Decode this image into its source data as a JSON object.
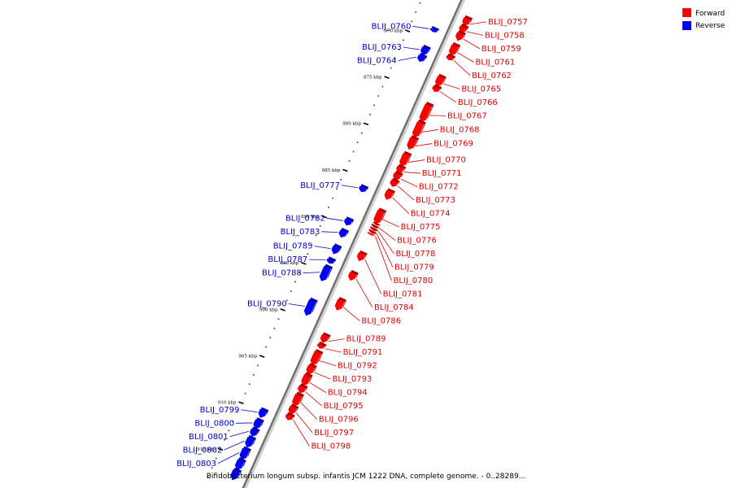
{
  "caption": "Bifidobacterium longum subsp. infantis JCM 1222 DNA, complete genome. - 0..28289...",
  "legend": [
    {
      "label": "Forward",
      "color": "#ff0000"
    },
    {
      "label": "Reverse",
      "color": "#0000ff"
    }
  ],
  "axis": {
    "unit": "kbp",
    "start_kbp": 865,
    "end_kbp": 918,
    "tick_labels": [
      "870 kbp",
      "875 kbp",
      "880 kbp",
      "885 kbp",
      "890 kbp",
      "895 kbp",
      "900 kbp",
      "905 kbp",
      "910 kbp",
      "915 kbp"
    ]
  },
  "forward_genes": [
    {
      "name": "BLIJ_0757",
      "start": 866.5,
      "end": 867.3
    },
    {
      "name": "BLIJ_0758",
      "start": 867.4,
      "end": 868.0
    },
    {
      "name": "BLIJ_0759",
      "start": 868.1,
      "end": 868.9
    },
    {
      "name": "BLIJ_0761",
      "start": 869.4,
      "end": 870.5
    },
    {
      "name": "BLIJ_0762",
      "start": 870.6,
      "end": 871.0
    },
    {
      "name": "BLIJ_0765",
      "start": 872.8,
      "end": 873.8
    },
    {
      "name": "BLIJ_0766",
      "start": 873.9,
      "end": 874.4
    },
    {
      "name": "BLIJ_0767",
      "start": 875.8,
      "end": 877.6
    },
    {
      "name": "BLIJ_0768",
      "start": 877.7,
      "end": 879.3
    },
    {
      "name": "BLIJ_0769",
      "start": 879.4,
      "end": 880.6
    },
    {
      "name": "BLIJ_0770",
      "start": 881.1,
      "end": 882.4
    },
    {
      "name": "BLIJ_0771",
      "start": 882.5,
      "end": 883.1
    },
    {
      "name": "BLIJ_0772",
      "start": 883.2,
      "end": 883.9
    },
    {
      "name": "BLIJ_0773",
      "start": 884.0,
      "end": 884.6
    },
    {
      "name": "BLIJ_0774",
      "start": 885.1,
      "end": 886.0
    },
    {
      "name": "BLIJ_0775",
      "start": 887.2,
      "end": 888.6
    },
    {
      "name": "BLIJ_0776",
      "start": 888.7,
      "end": 888.9
    },
    {
      "name": "BLIJ_0778",
      "start": 889.0,
      "end": 889.2
    },
    {
      "name": "BLIJ_0779",
      "start": 889.3,
      "end": 889.5
    },
    {
      "name": "BLIJ_0780",
      "start": 889.6,
      "end": 889.8
    },
    {
      "name": "BLIJ_0781",
      "start": 891.8,
      "end": 892.6
    },
    {
      "name": "BLIJ_0784",
      "start": 893.9,
      "end": 894.7
    },
    {
      "name": "BLIJ_0786",
      "start": 896.8,
      "end": 897.9
    },
    {
      "name": "BLIJ_0789",
      "start": 900.6,
      "end": 901.4
    },
    {
      "name": "BLIJ_0791",
      "start": 901.6,
      "end": 902.0
    },
    {
      "name": "BLIJ_0792",
      "start": 902.4,
      "end": 903.8
    },
    {
      "name": "BLIJ_0793",
      "start": 903.9,
      "end": 904.8
    },
    {
      "name": "BLIJ_0794",
      "start": 904.9,
      "end": 906.0
    },
    {
      "name": "BLIJ_0795",
      "start": 906.1,
      "end": 906.8
    },
    {
      "name": "BLIJ_0796",
      "start": 907.0,
      "end": 908.2
    },
    {
      "name": "BLIJ_0797",
      "start": 908.3,
      "end": 909.1
    },
    {
      "name": "BLIJ_0798",
      "start": 909.2,
      "end": 909.7
    }
  ],
  "reverse_genes": [
    {
      "name": "BLIJ_0760",
      "start": 868.8,
      "end": 869.1
    },
    {
      "name": "BLIJ_0763",
      "start": 870.8,
      "end": 871.6
    },
    {
      "name": "BLIJ_0764",
      "start": 871.7,
      "end": 872.3
    },
    {
      "name": "BLIJ_0777",
      "start": 885.8,
      "end": 886.3
    },
    {
      "name": "BLIJ_0782",
      "start": 889.3,
      "end": 889.9
    },
    {
      "name": "BLIJ_0783",
      "start": 890.5,
      "end": 891.2
    },
    {
      "name": "BLIJ_0785",
      "start": 892.2,
      "end": 893.0
    },
    {
      "name": "BLIJ_0787",
      "start": 893.6,
      "end": 894.0
    },
    {
      "name": "BLIJ_0788",
      "start": 894.4,
      "end": 895.9
    },
    {
      "name": "BLIJ_0790",
      "start": 898.0,
      "end": 899.6
    },
    {
      "name": "BLIJ_0799",
      "start": 909.8,
      "end": 910.6
    },
    {
      "name": "BLIJ_0800",
      "start": 910.9,
      "end": 911.8
    },
    {
      "name": "BLIJ_0801",
      "start": 911.9,
      "end": 912.6
    },
    {
      "name": "BLIJ_0802",
      "start": 912.8,
      "end": 913.8
    },
    {
      "name": "BLIJ_0803",
      "start": 914.0,
      "end": 915.1
    },
    {
      "name": "",
      "start": 915.2,
      "end": 916.2
    },
    {
      "name": "",
      "start": 916.3,
      "end": 917.3
    }
  ]
}
